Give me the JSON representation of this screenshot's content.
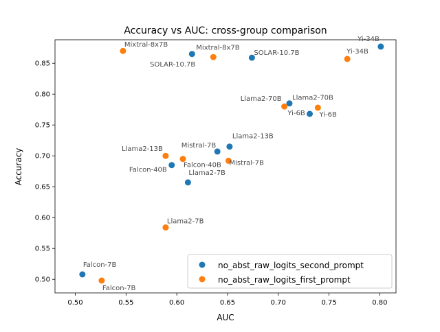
{
  "chart_data": {
    "type": "scatter",
    "title": "Accuracy vs AUC: cross-group comparison",
    "xlabel": "AUC",
    "ylabel": "Accuracy",
    "xlim": [
      0.48,
      0.816
    ],
    "ylim": [
      0.478,
      0.888
    ],
    "xticks": [
      "0.50",
      "0.55",
      "0.60",
      "0.65",
      "0.70",
      "0.75",
      "0.80"
    ],
    "yticks": [
      "0.50",
      "0.55",
      "0.60",
      "0.65",
      "0.70",
      "0.75",
      "0.80",
      "0.85"
    ],
    "grid": false,
    "legend_position": "lower-right",
    "series": [
      {
        "name": "no_abst_raw_logits_second_prompt",
        "color": "#1f77b4",
        "points": [
          {
            "label": "Falcon-7B",
            "x": 0.507,
            "y": 0.508
          },
          {
            "label": "Falcon-40B",
            "x": 0.595,
            "y": 0.685
          },
          {
            "label": "Llama2-7B",
            "x": 0.611,
            "y": 0.657
          },
          {
            "label": "Mixtral-8x7B",
            "x": 0.615,
            "y": 0.865
          },
          {
            "label": "Mistral-7B",
            "x": 0.64,
            "y": 0.707
          },
          {
            "label": "Llama2-13B",
            "x": 0.652,
            "y": 0.715
          },
          {
            "label": "SOLAR-10.7B",
            "x": 0.674,
            "y": 0.859
          },
          {
            "label": "Llama2-70B",
            "x": 0.711,
            "y": 0.785
          },
          {
            "label": "Yi-6B",
            "x": 0.731,
            "y": 0.768
          },
          {
            "label": "Yi-34B",
            "x": 0.801,
            "y": 0.877
          }
        ]
      },
      {
        "name": "no_abst_raw_logits_first_prompt",
        "color": "#ff7f0e",
        "points": [
          {
            "label": "Falcon-7B",
            "x": 0.526,
            "y": 0.498
          },
          {
            "label": "Mixtral-8x7B",
            "x": 0.547,
            "y": 0.87
          },
          {
            "label": "Llama2-13B",
            "x": 0.589,
            "y": 0.7
          },
          {
            "label": "Llama2-7B",
            "x": 0.589,
            "y": 0.584
          },
          {
            "label": "Falcon-40B",
            "x": 0.606,
            "y": 0.695
          },
          {
            "label": "SOLAR-10.7B",
            "x": 0.636,
            "y": 0.86
          },
          {
            "label": "Mistral-7B",
            "x": 0.651,
            "y": 0.692
          },
          {
            "label": "Llama2-70B",
            "x": 0.706,
            "y": 0.78
          },
          {
            "label": "Yi-6B",
            "x": 0.739,
            "y": 0.778
          },
          {
            "label": "Yi-34B",
            "x": 0.768,
            "y": 0.857
          }
        ]
      }
    ]
  }
}
